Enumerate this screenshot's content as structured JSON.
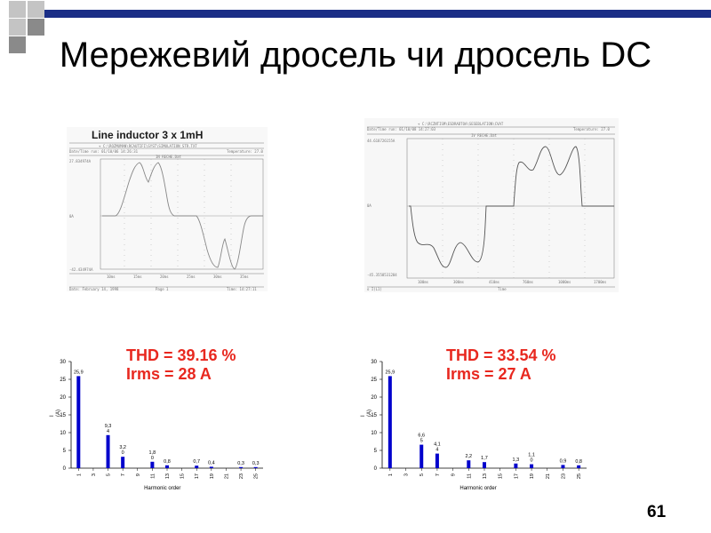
{
  "slide": {
    "title": "Мережевий дросель чи дросель DC",
    "page_number": "61",
    "inductor_label": "Line inductor 3 x 1mH",
    "colors": {
      "accent": "#1a2e86",
      "square_light": "#c4c4c4",
      "square_dark": "#8a8a8a",
      "stats": "#e8281f",
      "bars": "#0000cc"
    }
  },
  "left": {
    "thd": "THD = 39.16 %",
    "irms": "Irms = 28 A"
  },
  "right": {
    "thd": "THD = 33.54 %",
    "irms": "Irms = 27 A"
  },
  "chart_data": [
    {
      "type": "bar",
      "categories": [
        "1",
        "3",
        "5",
        "7",
        "9",
        "11",
        "13",
        "15",
        "17",
        "19",
        "21",
        "23",
        "25"
      ],
      "values": [
        25.9,
        0,
        9.3,
        3.2,
        0,
        1.8,
        0.8,
        0,
        0.7,
        0.4,
        0,
        0.3,
        0.3
      ],
      "value_labels": [
        "25,9",
        "",
        "9,3\n4",
        "3,2\n0",
        "",
        "1,8\n0",
        "0,8",
        "",
        "0,7",
        "0,4",
        "",
        "0,3",
        "0,3"
      ],
      "xlabel": "Harmonic order",
      "ylabel": "I\n(A)",
      "ylim": [
        0,
        30
      ],
      "yticks": [
        0,
        5,
        10,
        15,
        20,
        25,
        30
      ]
    },
    {
      "type": "bar",
      "categories": [
        "1",
        "3",
        "5",
        "7",
        "9",
        "11",
        "13",
        "15",
        "17",
        "19",
        "21",
        "23",
        "25"
      ],
      "values": [
        25.9,
        0,
        6.6,
        4.1,
        0,
        2.2,
        1.7,
        0,
        1.3,
        1.1,
        0,
        0.9,
        0.8
      ],
      "value_labels": [
        "25,9",
        "",
        "6,6\n5",
        "4,1\n4",
        "",
        "2,2",
        "1,7",
        "",
        "1,3",
        "1,1\n0",
        "",
        "0,9",
        "0,8"
      ],
      "xlabel": "Harmonic order",
      "ylabel": "I\n(A)",
      "ylim": [
        0,
        30
      ],
      "yticks": [
        0,
        5,
        10,
        15,
        20,
        25,
        30
      ]
    }
  ]
}
